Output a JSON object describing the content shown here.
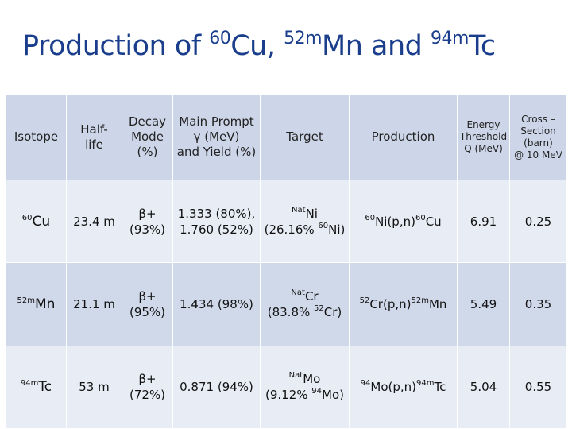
{
  "title": {
    "text1": "Production of ",
    "sup1": "60",
    "text2": "Cu, ",
    "sup2": "52m",
    "text3": "Mn and ",
    "sup3": "94m",
    "text4": "Tc"
  },
  "table": {
    "headers": {
      "isotope": "Isotope",
      "half_life_l1": "Half-",
      "half_life_l2": "life",
      "decay_l1": "Decay",
      "decay_l2": "Mode",
      "decay_l3": "(%)",
      "gamma_l1": "Main Prompt",
      "gamma_l2": "γ (MeV)",
      "gamma_l3": "and Yield (%)",
      "target": "Target",
      "production": "Production",
      "energy_l1": "Energy",
      "energy_l2": "Threshold",
      "energy_l3": "Q (MeV)",
      "cross_l1": "Cross –",
      "cross_l2": "Section",
      "cross_l3": "(barn)",
      "cross_l4": "@ 10 MeV"
    },
    "rows": [
      {
        "iso_mass": "60",
        "iso_sym": "Cu",
        "half_life": "23.4 m",
        "decay_mode": "β+",
        "decay_pct": "(93%)",
        "gamma_l1": "1.333 (80%),",
        "gamma_l2": "1.760 (52%)",
        "target_sup": "Nat",
        "target_el": "Ni",
        "abund_pre": "(26.16%",
        "abund_mass": "60",
        "abund_el": "Ni)",
        "prod_mass1": "60",
        "prod_rxn": "Ni(p,n)",
        "prod_mass2": "60",
        "prod_el": "Cu",
        "q": "6.91",
        "cross": "0.25"
      },
      {
        "iso_mass": "52m",
        "iso_sym": "Mn",
        "half_life": "21.1 m",
        "decay_mode": "β+",
        "decay_pct": "(95%)",
        "gamma_l1": "1.434 (98%)",
        "gamma_l2": "",
        "target_sup": "Nat",
        "target_el": "Cr",
        "abund_pre": "(83.8%",
        "abund_mass": "52",
        "abund_el": "Cr)",
        "prod_mass1": "52",
        "prod_rxn": "Cr(p,n)",
        "prod_mass2": "52m",
        "prod_el": "Mn",
        "q": "5.49",
        "cross": "0.35"
      },
      {
        "iso_mass": "94m",
        "iso_sym": "Tc",
        "half_life": "53 m",
        "decay_mode": "β+",
        "decay_pct": "(72%)",
        "gamma_l1": "0.871 (94%)",
        "gamma_l2": "",
        "target_sup": "Nat",
        "target_el": "Mo",
        "abund_pre": "(9.12%",
        "abund_mass": "94",
        "abund_el": "Mo)",
        "prod_mass1": "94",
        "prod_rxn": "Mo(p,n)",
        "prod_mass2": "94m",
        "prod_el": "Tc",
        "q": "5.04",
        "cross": "0.55"
      }
    ]
  }
}
